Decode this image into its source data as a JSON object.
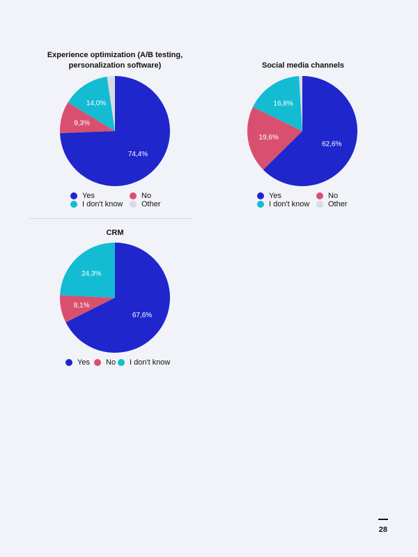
{
  "colors": {
    "yes": "#1f26cc",
    "no": "#d9506e",
    "dont_know": "#13bcd2",
    "other": "#d9dae3",
    "background": "#f2f3f9"
  },
  "page_number": "28",
  "chart_data": [
    {
      "type": "pie",
      "title": "Experience optimization (A/B testing,\npersonalization software)",
      "slices": [
        {
          "label": "Yes",
          "value": 74.4,
          "color": "#1f26cc",
          "display": "74,4%"
        },
        {
          "label": "No",
          "value": 9.3,
          "color": "#d9506e",
          "display": "9,3%"
        },
        {
          "label": "I don't know",
          "value": 14.0,
          "color": "#13bcd2",
          "display": "14,0%"
        },
        {
          "label": "Other",
          "value": 2.3,
          "color": "#d9dae3",
          "display": ""
        }
      ],
      "legend": [
        {
          "label": "Yes",
          "color": "#1f26cc"
        },
        {
          "label": "No",
          "color": "#d9506e"
        },
        {
          "label": "I don't know",
          "color": "#13bcd2"
        },
        {
          "label": "Other",
          "color": "#d9dae3"
        }
      ],
      "legend_position": "bottom"
    },
    {
      "type": "pie",
      "title": "Social media channels",
      "slices": [
        {
          "label": "Yes",
          "value": 62.6,
          "color": "#1f26cc",
          "display": "62,6%"
        },
        {
          "label": "No",
          "value": 19.6,
          "color": "#d9506e",
          "display": "19,6%"
        },
        {
          "label": "I don't know",
          "value": 16.8,
          "color": "#13bcd2",
          "display": "16,8%"
        },
        {
          "label": "Other",
          "value": 1.0,
          "color": "#d9dae3",
          "display": ""
        }
      ],
      "legend": [
        {
          "label": "Yes",
          "color": "#1f26cc"
        },
        {
          "label": "No",
          "color": "#d9506e"
        },
        {
          "label": "I don't know",
          "color": "#13bcd2"
        },
        {
          "label": "Other",
          "color": "#d9dae3"
        }
      ],
      "legend_position": "bottom"
    },
    {
      "type": "pie",
      "title": "CRM",
      "slices": [
        {
          "label": "Yes",
          "value": 67.6,
          "color": "#1f26cc",
          "display": "67,6%"
        },
        {
          "label": "No",
          "value": 8.1,
          "color": "#d9506e",
          "display": "8,1%"
        },
        {
          "label": "I don't know",
          "value": 24.3,
          "color": "#13bcd2",
          "display": "24,3%"
        }
      ],
      "legend": [
        {
          "label": "Yes",
          "color": "#1f26cc"
        },
        {
          "label": "No",
          "color": "#d9506e"
        },
        {
          "label": "I don't know",
          "color": "#13bcd2"
        }
      ],
      "legend_position": "bottom"
    }
  ]
}
